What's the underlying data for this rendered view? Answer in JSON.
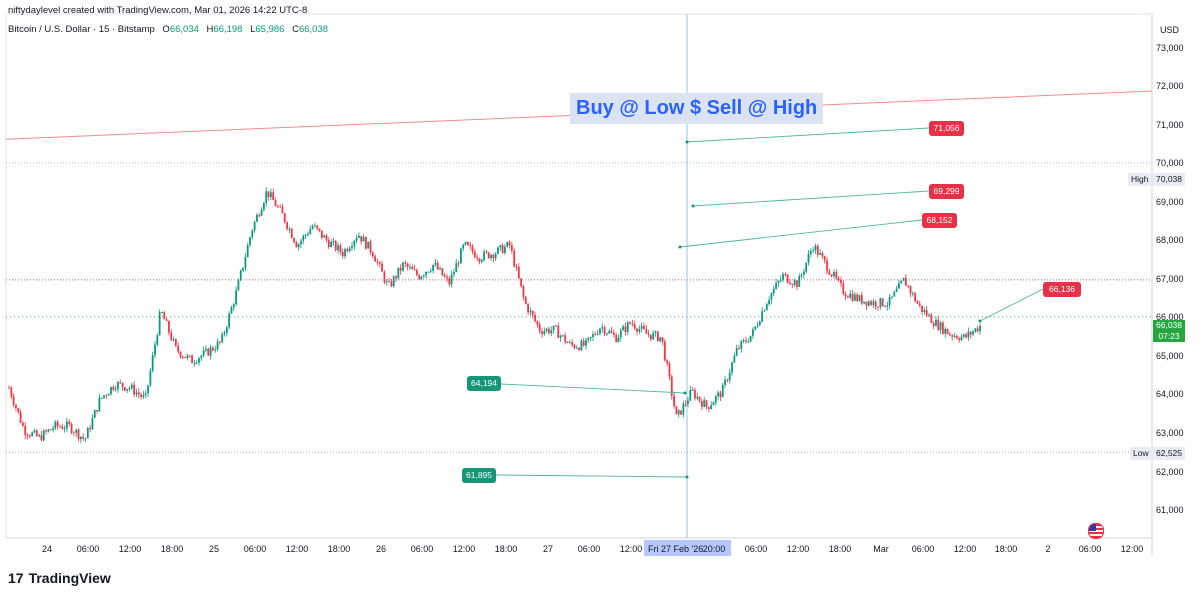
{
  "header": {
    "credit": "niftydaylevel created with TradingView.com, Mar 01, 2026 14:22 UTC-8",
    "symbol": "Bitcoin / U.S. Dollar · 15 · Bitstamp",
    "open_label": "O",
    "open": "66,034",
    "high_label": "H",
    "high": "66,198",
    "low_label": "L",
    "low": "65,986",
    "close_label": "C",
    "close": "66,038"
  },
  "price_axis": {
    "currency": "USD",
    "ticks": [
      "73,000",
      "72,000",
      "71,000",
      "70,000",
      "69,000",
      "68,000",
      "67,000",
      "66,000",
      "65,000",
      "64,000",
      "63,000",
      "62,000",
      "61,000"
    ],
    "high_tag": "High",
    "high_value": "70,038",
    "low_tag": "Low",
    "low_value": "62,525",
    "current_price": "66,038",
    "countdown": "07:23"
  },
  "time_axis": {
    "labels": [
      "24",
      "06:00",
      "12:00",
      "18:00",
      "25",
      "06:00",
      "12:00",
      "18:00",
      "26",
      "06:00",
      "12:00",
      "18:00",
      "27",
      "06:00",
      "12:00",
      "20:00",
      "06:00",
      "12:00",
      "18:00",
      "Mar",
      "06:00",
      "12:00",
      "18:00",
      "2",
      "06:00",
      "12:00"
    ],
    "crosshair_label": "Fri 27 Feb '26"
  },
  "annotations": {
    "title": "Buy @ Low $ Sell @ High",
    "targets_sell": [
      "71,056",
      "69,299",
      "68,152",
      "66,136"
    ],
    "targets_buy": [
      "64,194",
      "61,895"
    ]
  },
  "colors": {
    "up": "#089981",
    "down": "#f23645",
    "sell": "#e93046",
    "buy": "#159678",
    "accent": "#2962ff",
    "trendline": "#f58a8a"
  },
  "branding": {
    "logo_text": "TradingView",
    "logo_mark": "17"
  },
  "chart_data": {
    "type": "candlestick",
    "ylim": [
      60300,
      73900
    ],
    "x": [
      "24",
      "06:00",
      "12:00",
      "18:00",
      "25",
      "06:00",
      "12:00",
      "18:00",
      "26",
      "06:00",
      "12:00",
      "18:00",
      "27",
      "06:00",
      "12:00",
      "Fri 27 Feb '26",
      "20:00",
      "06:00",
      "12:00",
      "18:00",
      "Mar",
      "06:00",
      "12:00"
    ],
    "close_path": [
      64200,
      63100,
      62900,
      63200,
      63200,
      62850,
      63900,
      64300,
      64200,
      63900,
      66200,
      65200,
      64900,
      65100,
      65400,
      66700,
      68300,
      69300,
      68700,
      67900,
      68400,
      68000,
      67700,
      68200,
      67700,
      66800,
      67400,
      67100,
      67400,
      66900,
      67900,
      67600,
      67700,
      67900,
      66400,
      65700,
      65700,
      65300,
      65300,
      65800,
      65500,
      65900,
      65600,
      65500,
      63400,
      64100,
      63700,
      64100,
      65200,
      65600,
      66500,
      67100,
      66900,
      67900,
      67300,
      66700,
      66500,
      66400,
      66400,
      67000,
      66300,
      65900,
      65600,
      65500,
      65800
    ]
  },
  "levels": {
    "trendline": [
      70650,
      71900
    ],
    "high": 70038,
    "low": 62525,
    "dotted": 67000,
    "last": 66038
  }
}
